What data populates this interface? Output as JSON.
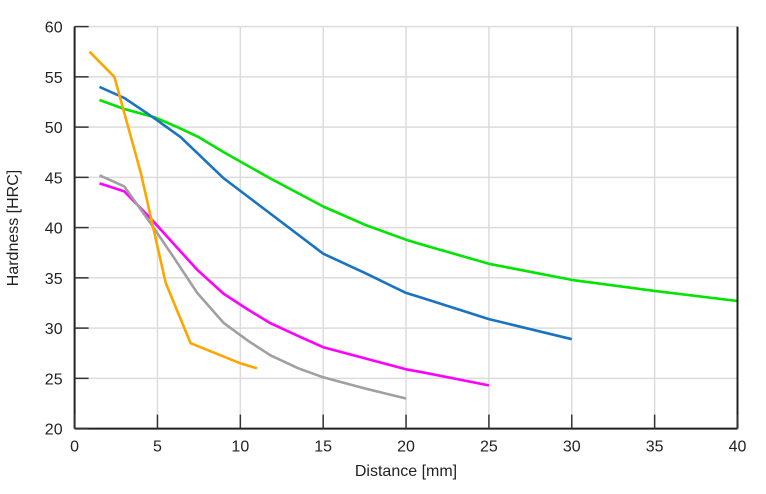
{
  "chart_data": {
    "type": "line",
    "title": "",
    "xlabel": "Distance [mm]",
    "ylabel": "Hardness [HRC]",
    "xlim": [
      0,
      40
    ],
    "ylim": [
      20,
      60
    ],
    "xticks": [
      0,
      5,
      10,
      15,
      20,
      25,
      30,
      35,
      40
    ],
    "yticks": [
      20,
      25,
      30,
      35,
      40,
      45,
      50,
      55,
      60
    ],
    "grid": true,
    "legend": "none",
    "series": [
      {
        "color": "#00E400",
        "points": [
          [
            1.5,
            52.7
          ],
          [
            3,
            51.8
          ],
          [
            4.8,
            51.0
          ],
          [
            6.2,
            50.0
          ],
          [
            7.5,
            49.0
          ],
          [
            9,
            47.5
          ],
          [
            11.8,
            44.9
          ],
          [
            15,
            42.1
          ],
          [
            17.5,
            40.3
          ],
          [
            20,
            38.8
          ],
          [
            21,
            38.3
          ],
          [
            25,
            36.4
          ],
          [
            30,
            34.8
          ],
          [
            35,
            33.7
          ],
          [
            40,
            32.7
          ]
        ]
      },
      {
        "color": "#1A73C0",
        "points": [
          [
            1.5,
            54.0
          ],
          [
            3,
            52.9
          ],
          [
            4.8,
            50.9
          ],
          [
            6.4,
            49.0
          ],
          [
            9,
            44.9
          ],
          [
            11.8,
            41.4
          ],
          [
            15,
            37.4
          ],
          [
            17.5,
            35.5
          ],
          [
            20,
            33.5
          ],
          [
            21,
            33.0
          ],
          [
            25,
            30.9
          ],
          [
            30,
            28.9
          ]
        ]
      },
      {
        "color": "#FF00FF",
        "points": [
          [
            1.5,
            44.4
          ],
          [
            3,
            43.6
          ],
          [
            4.6,
            40.9
          ],
          [
            7.4,
            35.8
          ],
          [
            9,
            33.4
          ],
          [
            10.5,
            31.8
          ],
          [
            11.8,
            30.5
          ],
          [
            13.5,
            29.2
          ],
          [
            15,
            28.1
          ],
          [
            17.5,
            27.0
          ],
          [
            20,
            25.9
          ],
          [
            21,
            25.6
          ],
          [
            25,
            24.3
          ]
        ]
      },
      {
        "color": "#A0A0A0",
        "points": [
          [
            1.5,
            45.2
          ],
          [
            3,
            44.1
          ],
          [
            4.6,
            40.4
          ],
          [
            6,
            37.0
          ],
          [
            7.4,
            33.5
          ],
          [
            9,
            30.5
          ],
          [
            10.5,
            28.7
          ],
          [
            11.8,
            27.3
          ],
          [
            13.5,
            26.0
          ],
          [
            15,
            25.1
          ],
          [
            17.5,
            24.0
          ],
          [
            20,
            23.0
          ]
        ]
      },
      {
        "color": "#FFA500",
        "points": [
          [
            0.9,
            57.5
          ],
          [
            2.4,
            55.0
          ],
          [
            4.0,
            45.4
          ],
          [
            5.5,
            34.5
          ],
          [
            7.0,
            28.5
          ],
          [
            10,
            26.5
          ],
          [
            11,
            26.0
          ]
        ]
      }
    ]
  }
}
